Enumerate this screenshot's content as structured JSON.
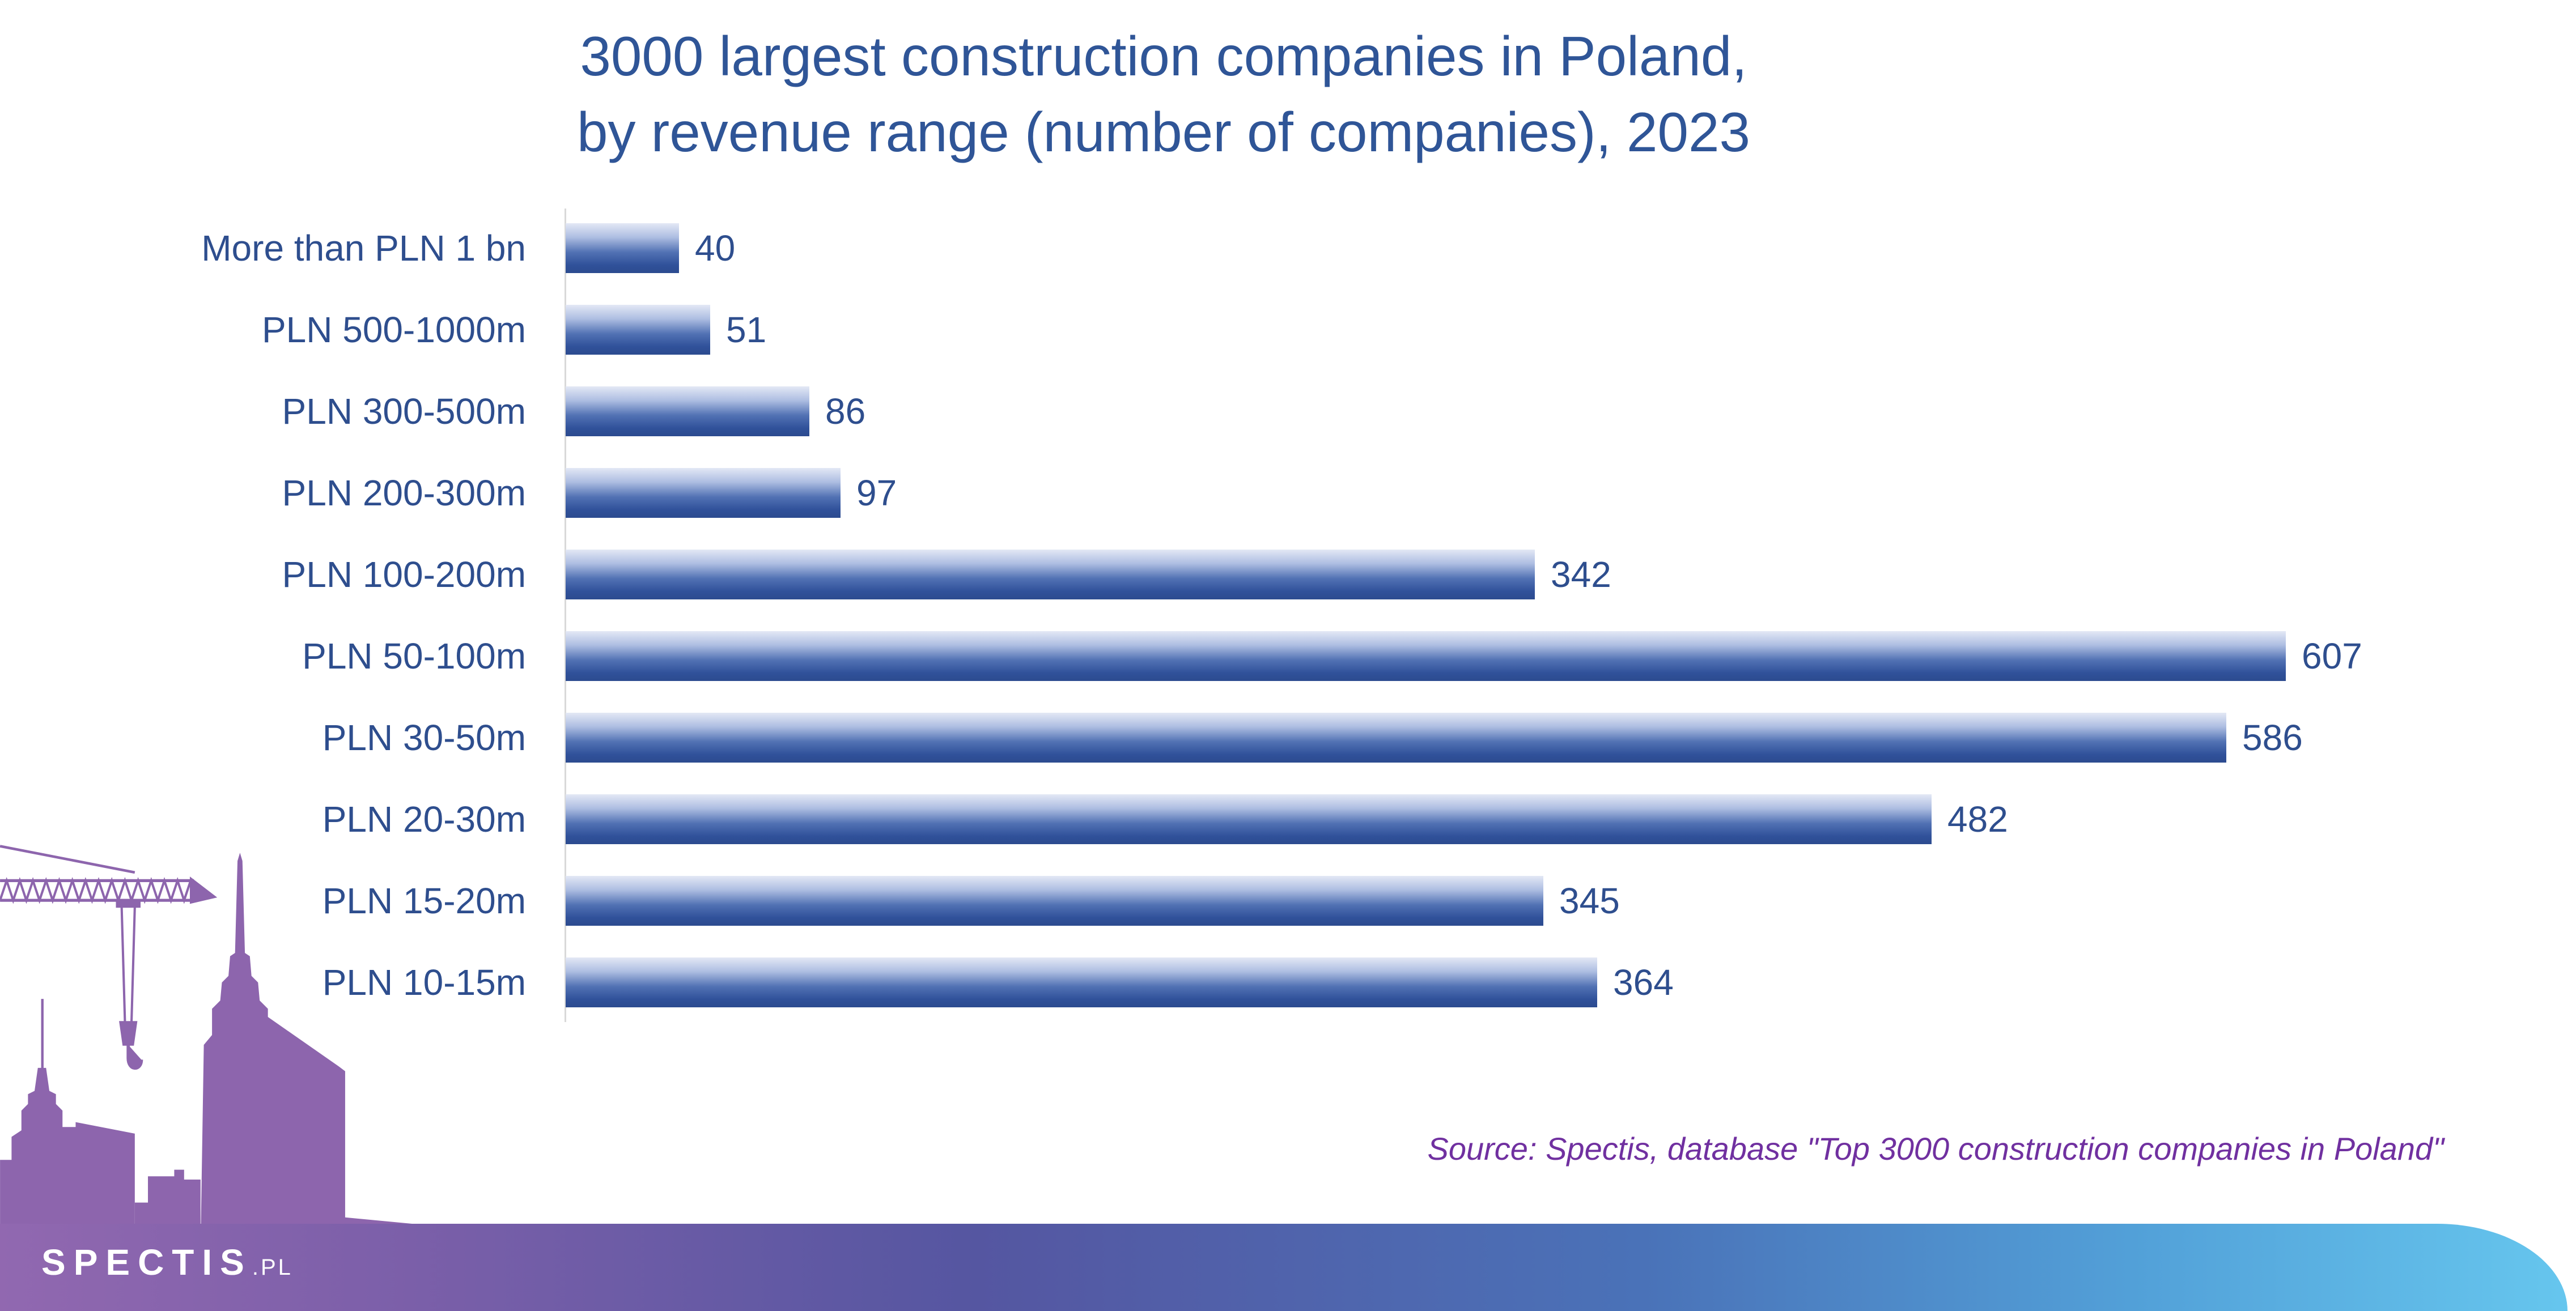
{
  "chart_data": {
    "type": "bar",
    "orientation": "horizontal",
    "title": "3000 largest construction companies in Poland,\nby revenue range (number of companies), 2023",
    "xlabel": "",
    "ylabel": "",
    "categories": [
      "More than PLN 1 bn",
      "PLN 500-1000m",
      "PLN 300-500m",
      "PLN 200-300m",
      "PLN 100-200m",
      "PLN 50-100m",
      "PLN 30-50m",
      "PLN 20-30m",
      "PLN 15-20m",
      "PLN 10-15m"
    ],
    "values": [
      40,
      51,
      86,
      97,
      342,
      607,
      586,
      482,
      345,
      364
    ]
  },
  "source": "Source: Spectis, database \"Top 3000 construction companies in Poland\"",
  "logo": {
    "name": "SPECTIS",
    "suffix": ".PL"
  },
  "icons": {
    "skyline": "city-skyline-icon",
    "crane": "crane-icon"
  },
  "colors": {
    "title": "#2F5597",
    "label": "#2E4E8E",
    "source": "#7030A0",
    "bar_top": "#E3E8F5",
    "bar_bottom": "#2C4B8F",
    "skyline": "#8D65AD",
    "band_left": "#9168B0",
    "band_right": "#66C6EE",
    "axis": "#D9D9D9",
    "logo": "#FFFFFF"
  }
}
